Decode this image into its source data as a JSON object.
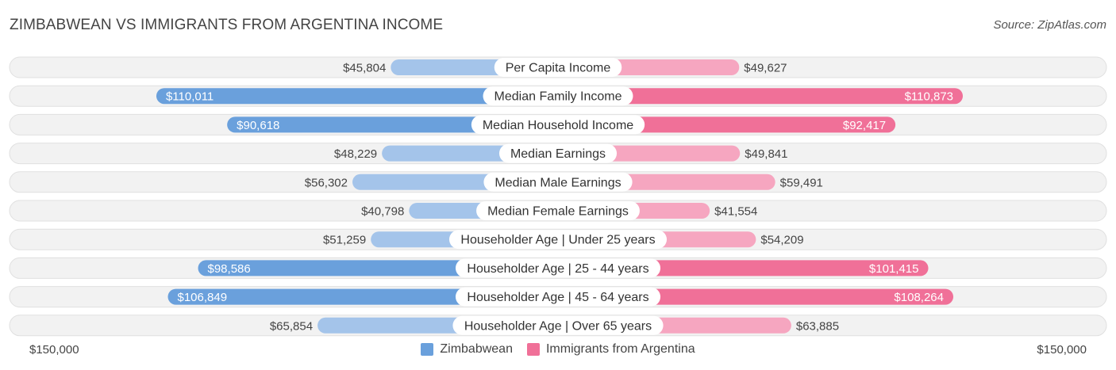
{
  "title": "ZIMBABWEAN VS IMMIGRANTS FROM ARGENTINA INCOME",
  "source": "Source: ZipAtlas.com",
  "colors": {
    "left_light": "#a4c4ea",
    "left_dark": "#6aa0dc",
    "right_light": "#f6a6c0",
    "right_dark": "#f07098"
  },
  "chart_data": {
    "type": "bar",
    "orientation": "horizontal-diverging",
    "title": "ZIMBABWEAN VS IMMIGRANTS FROM ARGENTINA INCOME",
    "axis_max": 150000,
    "axis_left_label": "$150,000",
    "axis_right_label": "$150,000",
    "categories": [
      "Per Capita Income",
      "Median Family Income",
      "Median Household Income",
      "Median Earnings",
      "Median Male Earnings",
      "Median Female Earnings",
      "Householder Age | Under 25 years",
      "Householder Age | 25 - 44 years",
      "Householder Age | 45 - 64 years",
      "Householder Age | Over 65 years"
    ],
    "series": [
      {
        "name": "Zimbabwean",
        "values": [
          45804,
          110011,
          90618,
          48229,
          56302,
          40798,
          51259,
          98586,
          106849,
          65854
        ],
        "labels": [
          "$45,804",
          "$110,011",
          "$90,618",
          "$48,229",
          "$56,302",
          "$40,798",
          "$51,259",
          "$98,586",
          "$106,849",
          "$65,854"
        ]
      },
      {
        "name": "Immigrants from Argentina",
        "values": [
          49627,
          110873,
          92417,
          49841,
          59491,
          41554,
          54209,
          101415,
          108264,
          63885
        ],
        "labels": [
          "$49,627",
          "$110,873",
          "$92,417",
          "$49,841",
          "$59,491",
          "$41,554",
          "$54,209",
          "$101,415",
          "$108,264",
          "$63,885"
        ]
      }
    ],
    "legend": [
      "Zimbabwean",
      "Immigrants from Argentina"
    ],
    "legend_position": "bottom-center"
  }
}
